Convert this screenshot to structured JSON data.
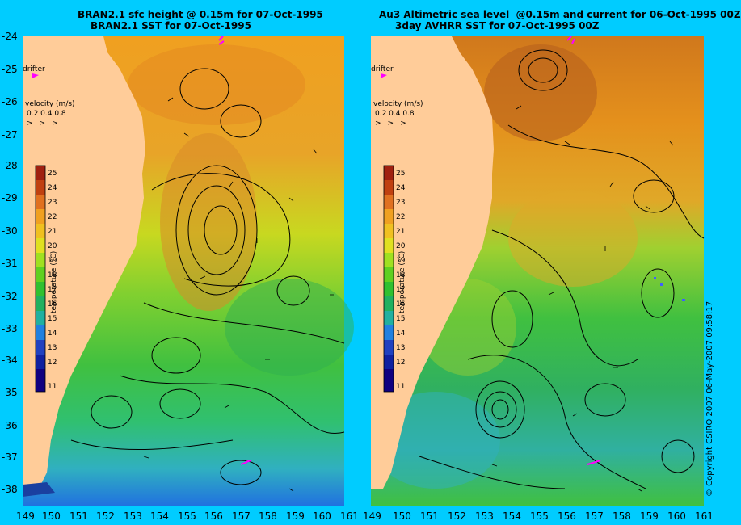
{
  "left_panel": {
    "title_line1": "BRAN2.1 sfc height @ 0.15m for 07-Oct-1995",
    "title_line2": "BRAN2.1 SST for 07-Oct-1995",
    "drifter_label": "drifter",
    "velocity_label": "velocity (m/s)",
    "velocity_scale": "0.2 0.4 0.8",
    "colorbar_title": "temperature (°C)"
  },
  "right_panel": {
    "title_line1": "Au3 Altimetric sea level  @0.15m and current for 06-Oct-1995 00Z",
    "title_line2": "3day AVHRR SST for 07-Oct-1995 00Z",
    "drifter_label": "drifter",
    "velocity_label": "velocity (m/s)",
    "velocity_scale": "0.2 0.4 0.8",
    "colorbar_title": "temperature (°C)"
  },
  "y_axis_labels": [
    "-24",
    "-25",
    "-26",
    "-27",
    "-28",
    "-29",
    "-30",
    "-31",
    "-32",
    "-33",
    "-34",
    "-35",
    "-36",
    "-37",
    "-38"
  ],
  "x_axis_left": [
    "149",
    "150",
    "151",
    "152",
    "153",
    "154",
    "155",
    "156",
    "157",
    "158",
    "159",
    "160",
    "161"
  ],
  "x_axis_right": [
    "149",
    "150",
    "151",
    "152",
    "153",
    "154",
    "155",
    "156",
    "157",
    "158",
    "159",
    "160",
    "161"
  ],
  "colorbar_ticks": [
    "25",
    "24",
    "23",
    "22",
    "21",
    "20",
    "19",
    "18",
    "17",
    "16",
    "15",
    "14",
    "13",
    "12",
    "11"
  ],
  "copyright": "© Copyright CSIRO 2007 06-May-2007 09:58:17",
  "colors": {
    "background": "#00ccff",
    "land": "#ffcc99",
    "drifter": "#ff00ff"
  }
}
